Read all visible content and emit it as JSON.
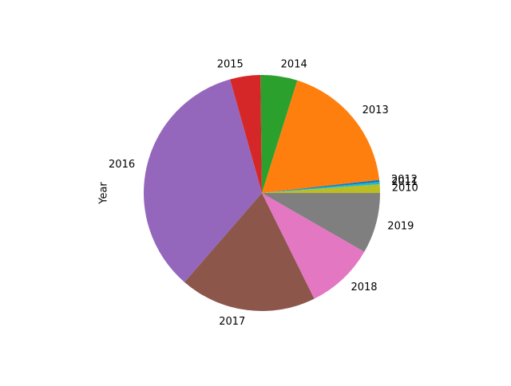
{
  "chart_data": {
    "type": "pie",
    "title": "",
    "ylabel": "Year",
    "start_angle_deg": 0,
    "direction": "counterclockwise",
    "slices": [
      {
        "label": "2010",
        "value": 1.2,
        "color": "#bcbd22"
      },
      {
        "label": "2011",
        "value": 0.3,
        "color": "#17becf"
      },
      {
        "label": "2012",
        "value": 0.3,
        "color": "#1f77b4"
      },
      {
        "label": "2013",
        "value": 18.6,
        "color": "#ff7f0e"
      },
      {
        "label": "2014",
        "value": 5.1,
        "color": "#2ca02c"
      },
      {
        "label": "2015",
        "value": 4.2,
        "color": "#d62728"
      },
      {
        "label": "2016",
        "value": 34.7,
        "color": "#9467bd"
      },
      {
        "label": "2017",
        "value": 18.9,
        "color": "#8c564b"
      },
      {
        "label": "2018",
        "value": 9.5,
        "color": "#e377c2"
      },
      {
        "label": "2019",
        "value": 8.4,
        "color": "#7f7f7f"
      }
    ]
  }
}
